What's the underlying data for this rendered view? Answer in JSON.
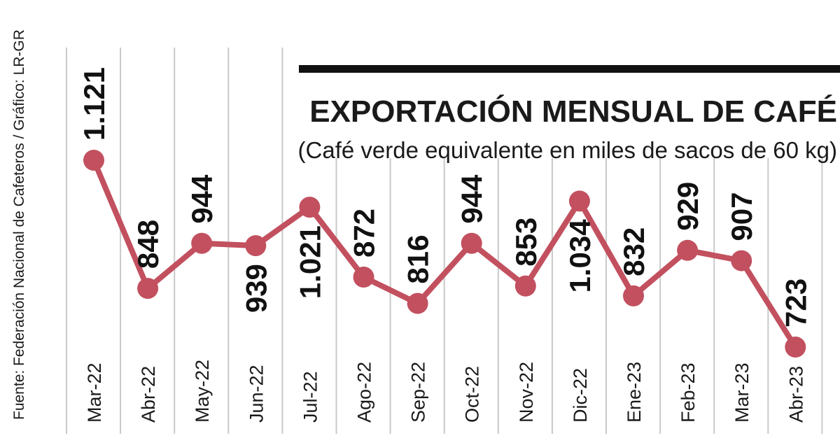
{
  "source": "Fuente: Federación Nacional de Cafeteros / Gráfico: LR-GR",
  "colors": {
    "series": "#c2505f",
    "text": "#1a1a1a",
    "grid": "#c9c9c9",
    "rule": "#111111"
  },
  "chart_data": {
    "type": "line",
    "title": "EXPORTACIÓN MENSUAL DE CAFÉ",
    "subtitle": "(Café verde equivalente en miles de sacos de 60 kg)",
    "categories": [
      "Mar-22",
      "Abr-22",
      "May-22",
      "Jun-22",
      "Jul-22",
      "Ago-22",
      "Sep-22",
      "Oct-22",
      "Nov-22",
      "Dic-22",
      "Ene-23",
      "Feb-23",
      "Mar-23",
      "Abr-23"
    ],
    "values": [
      1121,
      848,
      944,
      939,
      1021,
      872,
      816,
      944,
      853,
      1034,
      832,
      929,
      907,
      723
    ],
    "value_labels": [
      "1.121",
      "848",
      "944",
      "939",
      "1.021",
      "872",
      "816",
      "944",
      "853",
      "1.034",
      "832",
      "929",
      "907",
      "723"
    ],
    "grid": true,
    "legend": "none"
  }
}
